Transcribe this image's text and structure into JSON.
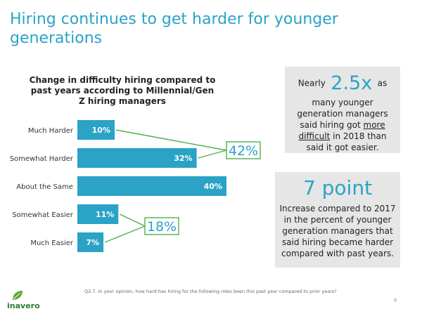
{
  "page": {
    "title": "Hiring continues to get harder for younger generations",
    "page_number": "9",
    "footnote": "Q2.7. In your opinion, how hard has hiring for the following roles been this past year compared to prior years?",
    "logo_text": "inavero",
    "accent_color": "#2aa3c7",
    "logo_color": "#2c7a3a"
  },
  "chart_data": {
    "type": "bar",
    "orientation": "horizontal",
    "title": "Change in difficulty hiring compared to past years according to Millennial/Gen Z hiring managers",
    "categories": [
      "Much Harder",
      "Somewhat Harder",
      "About the Same",
      "Somewhat Easier",
      "Much Easier"
    ],
    "values": [
      10,
      32,
      40,
      11,
      7
    ],
    "value_labels": [
      "10%",
      "32%",
      "40%",
      "11%",
      "7%"
    ],
    "bar_color": "#2aa3c7",
    "xlim": [
      0,
      40
    ],
    "grid": false,
    "legend": "none",
    "annotations": [
      {
        "label": "42%",
        "groups": [
          "Much Harder",
          "Somewhat Harder"
        ]
      },
      {
        "label": "18%",
        "groups": [
          "Somewhat Easier",
          "Much Easier"
        ]
      }
    ]
  },
  "box1": {
    "prefix": "Nearly",
    "big": "2.5x",
    "suffix": "as",
    "line_a": "many younger generation managers said hiring got",
    "underlined": "more difficult",
    "line_b": "in 2018 than said it got easier."
  },
  "box2": {
    "big": "7 point",
    "body": "Increase compared to 2017 in the percent of younger generation managers that said hiring became harder compared with past years."
  }
}
